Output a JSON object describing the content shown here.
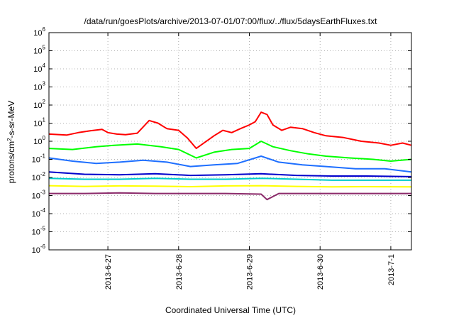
{
  "chart_data": {
    "type": "line",
    "title": "/data/run/goesPlots/archive/2013-07-01/07:00/flux/../flux/5daysEarthFluxes.txt",
    "xlabel": "Coordinated Universal Time (UTC)",
    "ylabel": "protons/cm²-s-sr-MeV",
    "ylabel_parts": {
      "before": "protons/cm",
      "sup": "2",
      "after": "-s-sr-MeV"
    },
    "yscale": "log",
    "ylim": [
      1e-06,
      1000000.0
    ],
    "xlim": [
      "2013-06-26 04:00",
      "2013-07-01 07:00"
    ],
    "grid": true,
    "legend": "none",
    "x_ticks": [
      {
        "value": "2013-06-27",
        "label": "2013-6-27"
      },
      {
        "value": "2013-06-28",
        "label": "2013-6-28"
      },
      {
        "value": "2013-06-29",
        "label": "2013-6-29"
      },
      {
        "value": "2013-06-30",
        "label": "2013-6-30"
      },
      {
        "value": "2013-07-01",
        "label": "2013-7-1"
      }
    ],
    "y_ticks": [
      {
        "value": 1e-06,
        "base": "10",
        "exp": "-6"
      },
      {
        "value": 1e-05,
        "base": "10",
        "exp": "-5"
      },
      {
        "value": 0.0001,
        "base": "10",
        "exp": "-4"
      },
      {
        "value": 0.001,
        "base": "10",
        "exp": "-3"
      },
      {
        "value": 0.01,
        "base": "10",
        "exp": "-2"
      },
      {
        "value": 0.1,
        "base": "10",
        "exp": "-1"
      },
      {
        "value": 1,
        "base": "10",
        "exp": "0"
      },
      {
        "value": 10,
        "base": "10",
        "exp": "1"
      },
      {
        "value": 100,
        "base": "10",
        "exp": "2"
      },
      {
        "value": 1000,
        "base": "10",
        "exp": "3"
      },
      {
        "value": 10000,
        "base": "10",
        "exp": "4"
      },
      {
        "value": 100000,
        "base": "10",
        "exp": "5"
      },
      {
        "value": 1000000,
        "base": "10",
        "exp": "6"
      }
    ],
    "series": [
      {
        "color": "#ff0000",
        "points": [
          [
            "2013-06-26 04:00",
            2.5
          ],
          [
            "2013-06-26 10:00",
            2.2
          ],
          [
            "2013-06-26 14:00",
            3.0
          ],
          [
            "2013-06-26 18:00",
            3.8
          ],
          [
            "2013-06-26 22:00",
            4.5
          ],
          [
            "2013-06-27 00:00",
            3.0
          ],
          [
            "2013-06-27 03:00",
            2.5
          ],
          [
            "2013-06-27 06:00",
            2.3
          ],
          [
            "2013-06-27 10:00",
            2.8
          ],
          [
            "2013-06-27 14:00",
            14
          ],
          [
            "2013-06-27 17:00",
            10
          ],
          [
            "2013-06-27 20:00",
            5
          ],
          [
            "2013-06-28 00:00",
            4
          ],
          [
            "2013-06-28 03:00",
            1.5
          ],
          [
            "2013-06-28 06:00",
            0.4
          ],
          [
            "2013-06-28 09:00",
            0.9
          ],
          [
            "2013-06-28 12:00",
            2
          ],
          [
            "2013-06-28 15:00",
            4
          ],
          [
            "2013-06-28 18:00",
            3
          ],
          [
            "2013-06-28 21:00",
            5
          ],
          [
            "2013-06-29 00:00",
            8
          ],
          [
            "2013-06-29 02:00",
            12
          ],
          [
            "2013-06-29 04:00",
            40
          ],
          [
            "2013-06-29 06:00",
            30
          ],
          [
            "2013-06-29 08:00",
            8
          ],
          [
            "2013-06-29 11:00",
            4
          ],
          [
            "2013-06-29 14:00",
            6
          ],
          [
            "2013-06-29 18:00",
            5
          ],
          [
            "2013-06-29 22:00",
            3
          ],
          [
            "2013-06-30 02:00",
            2
          ],
          [
            "2013-06-30 08:00",
            1.6
          ],
          [
            "2013-06-30 14:00",
            1.0
          ],
          [
            "2013-06-30 20:00",
            0.8
          ],
          [
            "2013-07-01 00:00",
            0.6
          ],
          [
            "2013-07-01 04:00",
            0.8
          ],
          [
            "2013-07-01 07:00",
            0.6
          ]
        ]
      },
      {
        "color": "#00ff00",
        "points": [
          [
            "2013-06-26 04:00",
            0.4
          ],
          [
            "2013-06-26 12:00",
            0.35
          ],
          [
            "2013-06-26 20:00",
            0.5
          ],
          [
            "2013-06-27 02:00",
            0.6
          ],
          [
            "2013-06-27 10:00",
            0.7
          ],
          [
            "2013-06-27 18:00",
            0.5
          ],
          [
            "2013-06-28 00:00",
            0.35
          ],
          [
            "2013-06-28 06:00",
            0.12
          ],
          [
            "2013-06-28 12:00",
            0.25
          ],
          [
            "2013-06-28 18:00",
            0.35
          ],
          [
            "2013-06-29 00:00",
            0.4
          ],
          [
            "2013-06-29 04:00",
            1.0
          ],
          [
            "2013-06-29 08:00",
            0.5
          ],
          [
            "2013-06-29 14:00",
            0.3
          ],
          [
            "2013-06-29 20:00",
            0.2
          ],
          [
            "2013-06-30 02:00",
            0.15
          ],
          [
            "2013-06-30 10:00",
            0.12
          ],
          [
            "2013-06-30 18:00",
            0.1
          ],
          [
            "2013-07-01 00:00",
            0.08
          ],
          [
            "2013-07-01 07:00",
            0.1
          ]
        ]
      },
      {
        "color": "#1e6fff",
        "points": [
          [
            "2013-06-26 04:00",
            0.12
          ],
          [
            "2013-06-26 12:00",
            0.08
          ],
          [
            "2013-06-26 20:00",
            0.06
          ],
          [
            "2013-06-27 04:00",
            0.07
          ],
          [
            "2013-06-27 12:00",
            0.09
          ],
          [
            "2013-06-27 20:00",
            0.07
          ],
          [
            "2013-06-28 04:00",
            0.04
          ],
          [
            "2013-06-28 12:00",
            0.05
          ],
          [
            "2013-06-28 20:00",
            0.06
          ],
          [
            "2013-06-29 04:00",
            0.15
          ],
          [
            "2013-06-29 10:00",
            0.07
          ],
          [
            "2013-06-29 18:00",
            0.05
          ],
          [
            "2013-06-30 02:00",
            0.04
          ],
          [
            "2013-06-30 12:00",
            0.03
          ],
          [
            "2013-06-30 22:00",
            0.03
          ],
          [
            "2013-07-01 07:00",
            0.02
          ]
        ]
      },
      {
        "color": "#0000cc",
        "points": [
          [
            "2013-06-26 04:00",
            0.02
          ],
          [
            "2013-06-26 16:00",
            0.015
          ],
          [
            "2013-06-27 04:00",
            0.014
          ],
          [
            "2013-06-27 16:00",
            0.016
          ],
          [
            "2013-06-28 04:00",
            0.013
          ],
          [
            "2013-06-28 16:00",
            0.014
          ],
          [
            "2013-06-29 04:00",
            0.016
          ],
          [
            "2013-06-29 16:00",
            0.013
          ],
          [
            "2013-06-30 04:00",
            0.012
          ],
          [
            "2013-06-30 16:00",
            0.012
          ],
          [
            "2013-07-01 07:00",
            0.011
          ]
        ]
      },
      {
        "color": "#00cccc",
        "points": [
          [
            "2013-06-26 04:00",
            0.009
          ],
          [
            "2013-06-26 16:00",
            0.008
          ],
          [
            "2013-06-27 04:00",
            0.008
          ],
          [
            "2013-06-27 16:00",
            0.009
          ],
          [
            "2013-06-28 04:00",
            0.008
          ],
          [
            "2013-06-28 16:00",
            0.008
          ],
          [
            "2013-06-29 04:00",
            0.009
          ],
          [
            "2013-06-29 16:00",
            0.008
          ],
          [
            "2013-06-30 04:00",
            0.007
          ],
          [
            "2013-06-30 16:00",
            0.007
          ],
          [
            "2013-07-01 07:00",
            0.007
          ]
        ]
      },
      {
        "color": "#ffff00",
        "points": [
          [
            "2013-06-26 04:00",
            0.0035
          ],
          [
            "2013-06-26 16:00",
            0.0032
          ],
          [
            "2013-06-27 04:00",
            0.0034
          ],
          [
            "2013-06-27 16:00",
            0.0033
          ],
          [
            "2013-06-28 04:00",
            0.0031
          ],
          [
            "2013-06-28 16:00",
            0.0034
          ],
          [
            "2013-06-29 04:00",
            0.0035
          ],
          [
            "2013-06-29 16:00",
            0.0032
          ],
          [
            "2013-06-30 04:00",
            0.003
          ],
          [
            "2013-06-30 16:00",
            0.0031
          ],
          [
            "2013-07-01 07:00",
            0.003
          ]
        ]
      },
      {
        "color": "#8b2a6a",
        "points": [
          [
            "2013-06-26 04:00",
            0.0013
          ],
          [
            "2013-06-26 16:00",
            0.0013
          ],
          [
            "2013-06-27 04:00",
            0.0014
          ],
          [
            "2013-06-27 16:00",
            0.0013
          ],
          [
            "2013-06-28 04:00",
            0.0013
          ],
          [
            "2013-06-28 16:00",
            0.0013
          ],
          [
            "2013-06-29 04:00",
            0.0012
          ],
          [
            "2013-06-29 06:00",
            0.0006
          ],
          [
            "2013-06-29 10:00",
            0.0013
          ],
          [
            "2013-06-30 04:00",
            0.0013
          ],
          [
            "2013-06-30 16:00",
            0.0013
          ],
          [
            "2013-07-01 07:00",
            0.0013
          ]
        ]
      }
    ]
  }
}
